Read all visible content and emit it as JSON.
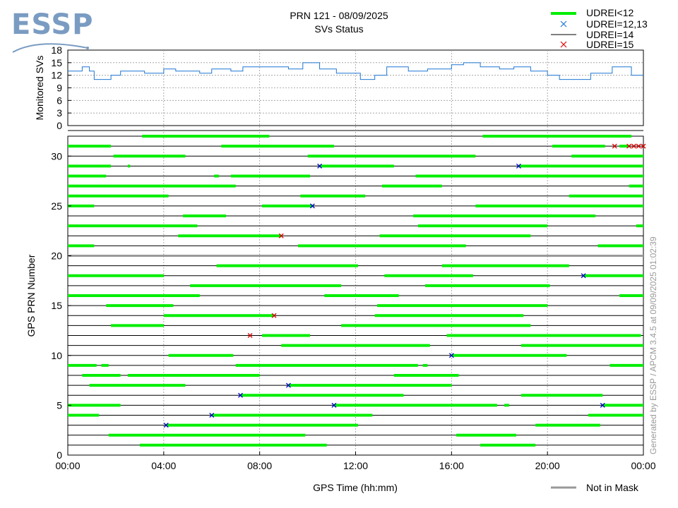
{
  "logo": {
    "text": "ESSP",
    "color": "#7a9cc2"
  },
  "title": {
    "line1": "PRN 121 - 08/09/2025",
    "line2": "SVs Status"
  },
  "generated_by": "Generated by ESSP / APCM 3.4.5 at 09/09/2025 01:02:39",
  "colors": {
    "udrei_lt12": "#00ee00",
    "udrei_12_13": "#0000cc",
    "udrei_14": "#000000",
    "udrei_15": "#dd0000",
    "not_in_mask": "#999999",
    "monitored": "#1f77d4"
  },
  "legend": {
    "items": [
      {
        "label": "UDREI<12",
        "marker": "thick-line",
        "color": "#00ee00"
      },
      {
        "label": "UDREI=12,13",
        "marker": "x",
        "color": "#1f77d4"
      },
      {
        "label": "UDREI=14",
        "marker": "thin-line",
        "color": "#000000"
      },
      {
        "label": "UDREI=15",
        "marker": "x",
        "color": "#dd0000"
      }
    ],
    "bottom": {
      "label": "Not in Mask",
      "color": "#999999"
    }
  },
  "chart_data": [
    {
      "type": "line",
      "ylabel": "Monitored SVs",
      "yticks": [
        "0",
        "3",
        "6",
        "9",
        "12",
        "15",
        "18"
      ],
      "ylim": [
        0,
        18
      ],
      "xlim_hours": [
        0,
        24
      ],
      "grid": true,
      "series": [
        {
          "points": [
            [
              0,
              13
            ],
            [
              0.6,
              14
            ],
            [
              0.9,
              13
            ],
            [
              1.1,
              11
            ],
            [
              1.8,
              12
            ],
            [
              2.2,
              13
            ],
            [
              3.2,
              12.5
            ],
            [
              4,
              13.5
            ],
            [
              4.5,
              13
            ],
            [
              5.5,
              12.5
            ],
            [
              6,
              13.5
            ],
            [
              6.8,
              13
            ],
            [
              7.3,
              14
            ],
            [
              8.3,
              14
            ],
            [
              9.2,
              13.5
            ],
            [
              9.8,
              15
            ],
            [
              10.5,
              13.5
            ],
            [
              11.2,
              12.5
            ],
            [
              12.2,
              11
            ],
            [
              12.8,
              12
            ],
            [
              13.3,
              14
            ],
            [
              14.2,
              13
            ],
            [
              15,
              13.5
            ],
            [
              16,
              14.5
            ],
            [
              16.5,
              15
            ],
            [
              17.2,
              14
            ],
            [
              18,
              13.5
            ],
            [
              18.6,
              14
            ],
            [
              19.3,
              13
            ],
            [
              20,
              12
            ],
            [
              20.5,
              11
            ],
            [
              21.2,
              11
            ],
            [
              21.8,
              12.5
            ],
            [
              22.7,
              14
            ],
            [
              23.5,
              12
            ],
            [
              24,
              12
            ]
          ]
        }
      ]
    },
    {
      "type": "timeline",
      "xlabel": "GPS Time (hh:mm)",
      "ylabel": "GPS PRN Number",
      "xticks": [
        "00:00",
        "04:00",
        "08:00",
        "12:00",
        "16:00",
        "20:00",
        "00:00"
      ],
      "yticks": [
        "0",
        "5",
        "10",
        "15",
        "20",
        "25",
        "30"
      ],
      "ylim": [
        0,
        32
      ],
      "xlim_hours": [
        0,
        24
      ],
      "not_in_mask_prns": [
        20
      ],
      "green": {
        "1": [
          [
            3.0,
            10.8
          ],
          [
            17.2,
            19.5
          ]
        ],
        "2": [
          [
            1.7,
            9.9
          ],
          [
            16.2,
            18.7
          ]
        ],
        "3": [
          [
            4.1,
            12.1
          ],
          [
            19.5,
            22.2
          ]
        ],
        "4": [
          [
            0,
            1.3
          ],
          [
            6.0,
            12.7
          ],
          [
            21.7,
            24
          ]
        ],
        "5": [
          [
            0,
            2.2
          ],
          [
            11.1,
            17.9
          ],
          [
            18.2,
            18.4
          ],
          [
            22.3,
            24
          ]
        ],
        "6": [
          [
            7.2,
            14.0
          ],
          [
            18.9,
            22.3
          ]
        ],
        "7": [
          [
            0.9,
            4.9
          ],
          [
            9.2,
            16.0
          ]
        ],
        "8": [
          [
            0.6,
            2.2
          ],
          [
            2.5,
            8.0
          ],
          [
            13.6,
            16.3
          ]
        ],
        "9": [
          [
            0,
            1.2
          ],
          [
            1.4,
            1.7
          ],
          [
            7.0,
            14.6
          ],
          [
            14.8,
            15.0
          ],
          [
            22.6,
            24
          ]
        ],
        "10": [
          [
            4.2,
            6.9
          ],
          [
            16.0,
            20.8
          ]
        ],
        "11": [
          [
            8.9,
            15.1
          ],
          [
            18.9,
            24
          ]
        ],
        "12": [
          [
            8.1,
            10.1
          ],
          [
            15.8,
            23.9
          ]
        ],
        "13": [
          [
            1.8,
            4.0
          ],
          [
            11.4,
            19.3
          ]
        ],
        "14": [
          [
            4.0,
            8.6
          ],
          [
            12.8,
            19.0
          ]
        ],
        "15": [
          [
            1.6,
            4.4
          ],
          [
            12.9,
            20.0
          ]
        ],
        "16": [
          [
            0,
            5.5
          ],
          [
            10.7,
            13.8
          ],
          [
            23.0,
            24
          ]
        ],
        "17": [
          [
            5.1,
            11.4
          ],
          [
            14.9,
            20.1
          ]
        ],
        "18": [
          [
            0,
            4.0
          ],
          [
            13.2,
            16.9
          ],
          [
            21.5,
            24
          ]
        ],
        "19": [
          [
            6.2,
            12.1
          ],
          [
            15.6,
            20.9
          ]
        ],
        "21": [
          [
            0,
            1.1
          ],
          [
            9.6,
            16.6
          ],
          [
            22.1,
            24
          ]
        ],
        "22": [
          [
            4.6,
            8.9
          ],
          [
            13.0,
            19.3
          ]
        ],
        "23": [
          [
            0,
            5.4
          ],
          [
            14.6,
            20.0
          ],
          [
            23.7,
            24
          ]
        ],
        "24": [
          [
            4.8,
            6.6
          ],
          [
            14.4,
            22.0
          ]
        ],
        "25": [
          [
            0,
            1.1
          ],
          [
            8.1,
            10.2
          ],
          [
            17.0,
            24
          ]
        ],
        "26": [
          [
            0,
            4.2
          ],
          [
            9.7,
            12.4
          ],
          [
            20.9,
            24
          ]
        ],
        "27": [
          [
            0,
            7.0
          ],
          [
            13.1,
            15.6
          ],
          [
            23.4,
            24
          ]
        ],
        "28": [
          [
            0,
            1.6
          ],
          [
            6.1,
            6.3
          ],
          [
            6.8,
            10.1
          ],
          [
            14.5,
            24
          ]
        ],
        "29": [
          [
            0,
            1.8
          ],
          [
            2.5,
            2.6
          ],
          [
            10.5,
            13.6
          ],
          [
            18.8,
            24
          ]
        ],
        "30": [
          [
            1.9,
            4.9
          ],
          [
            10.0,
            17.0
          ],
          [
            21.0,
            24
          ]
        ],
        "31": [
          [
            0,
            1.8
          ],
          [
            6.4,
            11.1
          ],
          [
            20.2,
            22.4
          ],
          [
            23.0,
            23.4
          ]
        ],
        "32": [
          [
            3.1,
            8.4
          ],
          [
            17.3,
            23.5
          ]
        ]
      },
      "udrei_12_13": [
        [
          4.1,
          3
        ],
        [
          6.0,
          4
        ],
        [
          7.2,
          6
        ],
        [
          9.2,
          7
        ],
        [
          11.1,
          5
        ],
        [
          16.0,
          10
        ],
        [
          22.3,
          5
        ],
        [
          10.2,
          25
        ],
        [
          10.5,
          29
        ],
        [
          18.8,
          29
        ],
        [
          21.5,
          18
        ]
      ],
      "udrei_15": [
        [
          7.6,
          12
        ],
        [
          8.6,
          14
        ],
        [
          8.9,
          22
        ],
        [
          22.8,
          31
        ],
        [
          23.4,
          31
        ],
        [
          23.6,
          31
        ],
        [
          23.8,
          31
        ],
        [
          24.0,
          31
        ]
      ]
    }
  ]
}
